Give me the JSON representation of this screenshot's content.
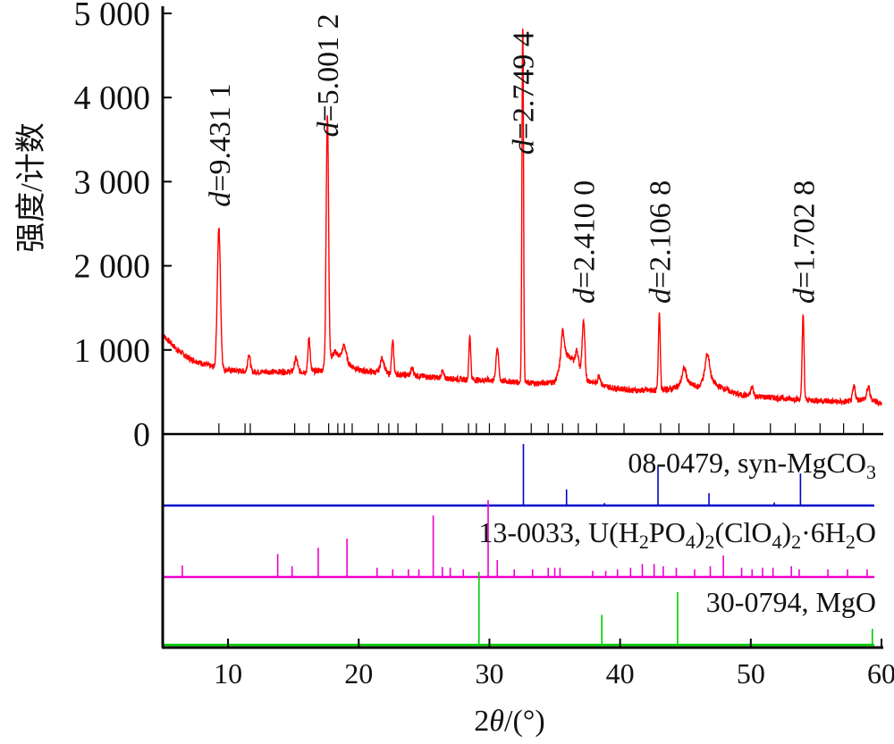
{
  "colors": {
    "pattern": "#ff0000",
    "ref_mgco3": "#0000cc",
    "ref_u": "#ee00cc",
    "ref_mgo": "#00cc00",
    "axis": "#000000"
  },
  "chart_data": {
    "type": "line",
    "ylabel": "强度/计数",
    "xlabel_parts": [
      "2",
      "θ",
      "/(°)"
    ],
    "xlim": [
      5,
      60
    ],
    "ylim": [
      0,
      5000
    ],
    "yticks": [
      0,
      1000,
      2000,
      3000,
      4000,
      5000
    ],
    "ytick_labels": [
      "0",
      "1 000",
      "2 000",
      "3 000",
      "4 000",
      "5 000"
    ],
    "xticks": [
      10,
      20,
      30,
      40,
      50,
      60
    ],
    "xtick_labels": [
      "10",
      "20",
      "30",
      "40",
      "50",
      "60"
    ],
    "baseline": [
      [
        5,
        1180
      ],
      [
        6,
        1020
      ],
      [
        7,
        900
      ],
      [
        8,
        840
      ],
      [
        8.8,
        800
      ],
      [
        10,
        760
      ],
      [
        12,
        740
      ],
      [
        14,
        740
      ],
      [
        16,
        740
      ],
      [
        17.2,
        760
      ],
      [
        18.2,
        980
      ],
      [
        19,
        850
      ],
      [
        20,
        760
      ],
      [
        22,
        720
      ],
      [
        24,
        700
      ],
      [
        26,
        670
      ],
      [
        28,
        650
      ],
      [
        30,
        640
      ],
      [
        32,
        620
      ],
      [
        33.5,
        600
      ],
      [
        35,
        620
      ],
      [
        35.8,
        950
      ],
      [
        36.5,
        880
      ],
      [
        37.5,
        640
      ],
      [
        39,
        560
      ],
      [
        41,
        520
      ],
      [
        43,
        520
      ],
      [
        44,
        540
      ],
      [
        45,
        620
      ],
      [
        46,
        560
      ],
      [
        46.6,
        720
      ],
      [
        47.4,
        580
      ],
      [
        49,
        470
      ],
      [
        51,
        440
      ],
      [
        53,
        420
      ],
      [
        55,
        400
      ],
      [
        57,
        380
      ],
      [
        58,
        400
      ],
      [
        59,
        430
      ],
      [
        60,
        360
      ]
    ],
    "peaks": [
      [
        9.3,
        2450,
        0.12
      ],
      [
        11.6,
        950,
        0.1
      ],
      [
        15.2,
        900,
        0.12
      ],
      [
        16.2,
        1150,
        0.08
      ],
      [
        17.6,
        3800,
        0.09
      ],
      [
        18.9,
        1050,
        0.15
      ],
      [
        21.8,
        900,
        0.15
      ],
      [
        22.6,
        1100,
        0.08
      ],
      [
        24.1,
        780,
        0.1
      ],
      [
        26.4,
        740,
        0.1
      ],
      [
        28.5,
        1180,
        0.07
      ],
      [
        30.6,
        1030,
        0.1
      ],
      [
        32.55,
        4900,
        0.06
      ],
      [
        35.6,
        1220,
        0.12
      ],
      [
        36.7,
        1000,
        0.1
      ],
      [
        37.2,
        1330,
        0.1
      ],
      [
        38.4,
        700,
        0.1
      ],
      [
        43.0,
        1450,
        0.07
      ],
      [
        44.9,
        780,
        0.15
      ],
      [
        46.7,
        950,
        0.15
      ],
      [
        50.1,
        560,
        0.1
      ],
      [
        54.0,
        1420,
        0.07
      ],
      [
        57.9,
        560,
        0.1
      ],
      [
        59.0,
        560,
        0.1
      ]
    ],
    "annotations": [
      {
        "prefix": "d",
        "text": "=9.431 1",
        "x": 9.3,
        "ybase": 2700
      },
      {
        "prefix": "d",
        "text": "=5.001 2",
        "x": 17.6,
        "ybase": 3530
      },
      {
        "prefix": "d",
        "text": "=2.749 4",
        "x": 32.55,
        "ybase": 3320
      },
      {
        "prefix": "d",
        "text": "=2.410 0",
        "x": 37.2,
        "ybase": 1550
      },
      {
        "prefix": "d",
        "text": "=2.106 8",
        "x": 43.0,
        "ybase": 1550
      },
      {
        "prefix": "d",
        "text": "=1.702 8",
        "x": 54.0,
        "ybase": 1550
      }
    ],
    "top_ticks": [
      9.3,
      11.3,
      11.7,
      15.1,
      16.2,
      17.7,
      18.4,
      18.9,
      19.5,
      21.5,
      22.3,
      23.0,
      24.4,
      26.4,
      28.4,
      29.0,
      30.0,
      31.2,
      33.2,
      34.5,
      35.6,
      36.8,
      38.2,
      40.3,
      43.1,
      44.5,
      46.8,
      48.7,
      51.5,
      53.4,
      55.3,
      57.1,
      58.6
    ],
    "references": [
      {
        "name": "08-0479, syn-MgCO",
        "sub": "3",
        "sticks": [
          [
            32.6,
            1.0
          ],
          [
            35.9,
            0.26
          ],
          [
            38.8,
            0.04
          ],
          [
            42.9,
            0.65
          ],
          [
            46.8,
            0.2
          ],
          [
            51.8,
            0.05
          ],
          [
            53.8,
            0.52
          ]
        ]
      },
      {
        "name_parts": [
          "13-0033, U(H",
          "2",
          "PO",
          "4",
          ")",
          "2",
          "(ClO",
          "4",
          ")",
          "2",
          "·6H",
          "2",
          "O"
        ],
        "sticks": [
          [
            6.5,
            0.15
          ],
          [
            13.8,
            0.3
          ],
          [
            14.9,
            0.14
          ],
          [
            16.9,
            0.38
          ],
          [
            19.1,
            0.5
          ],
          [
            21.4,
            0.12
          ],
          [
            22.6,
            0.1
          ],
          [
            23.8,
            0.1
          ],
          [
            24.6,
            0.1
          ],
          [
            25.7,
            0.8
          ],
          [
            26.4,
            0.13
          ],
          [
            27.0,
            0.12
          ],
          [
            28.0,
            0.1
          ],
          [
            29.9,
            1.0
          ],
          [
            30.6,
            0.22
          ],
          [
            31.9,
            0.1
          ],
          [
            33.3,
            0.1
          ],
          [
            34.5,
            0.12
          ],
          [
            35.0,
            0.12
          ],
          [
            35.4,
            0.12
          ],
          [
            37.9,
            0.08
          ],
          [
            38.9,
            0.08
          ],
          [
            39.8,
            0.1
          ],
          [
            40.8,
            0.12
          ],
          [
            41.7,
            0.17
          ],
          [
            42.6,
            0.17
          ],
          [
            43.3,
            0.14
          ],
          [
            44.3,
            0.12
          ],
          [
            45.7,
            0.1
          ],
          [
            46.9,
            0.14
          ],
          [
            47.9,
            0.28
          ],
          [
            49.3,
            0.12
          ],
          [
            50.1,
            0.1
          ],
          [
            50.9,
            0.12
          ],
          [
            51.7,
            0.12
          ],
          [
            53.1,
            0.14
          ],
          [
            53.7,
            0.1
          ],
          [
            55.9,
            0.1
          ],
          [
            57.4,
            0.1
          ],
          [
            58.9,
            0.1
          ]
        ]
      },
      {
        "name": "30-0794, MgO",
        "sticks": [
          [
            29.2,
            1.0
          ],
          [
            38.6,
            0.41
          ],
          [
            44.4,
            0.72
          ],
          [
            59.3,
            0.22
          ]
        ]
      }
    ]
  }
}
